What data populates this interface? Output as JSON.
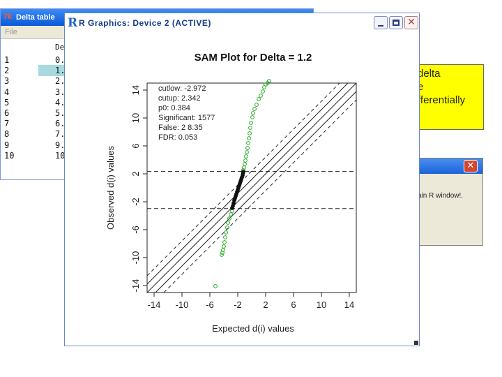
{
  "delta_window": {
    "title": "Delta table",
    "menu_file": "File",
    "column_header": "De",
    "rows": [
      {
        "index": "1",
        "value": "0."
      },
      {
        "index": "2",
        "value": "1."
      },
      {
        "index": "3",
        "value": "2."
      },
      {
        "index": "4",
        "value": "3."
      },
      {
        "index": "5",
        "value": "4."
      },
      {
        "index": "6",
        "value": "5."
      },
      {
        "index": "7",
        "value": "6."
      },
      {
        "index": "8",
        "value": "7."
      },
      {
        "index": "9",
        "value": "9."
      },
      {
        "index": "10",
        "value": "10"
      }
    ],
    "selected_row": 2
  },
  "help_note": {
    "lines": [
      "delta",
      "e",
      "fferentially"
    ]
  },
  "message_dialog": {
    "close_glyph": "✕",
    "text": "ain R window!."
  },
  "r_graphics_window": {
    "logo": "R",
    "title": "R Graphics: Device 2 (ACTIVE)",
    "close_glyph": "✕"
  },
  "chart_data": {
    "type": "scatter",
    "title": "SAM Plot for Delta = 1.2",
    "xlabel": "Expected d(i) values",
    "ylabel": "Observed d(i) values",
    "xlim": [
      -15,
      15
    ],
    "ylim": [
      -15,
      15
    ],
    "x_ticks": [
      -14,
      -10,
      -6,
      -2,
      2,
      6,
      10,
      14
    ],
    "y_ticks": [
      -14,
      -10,
      -6,
      -2,
      2,
      6,
      10,
      14
    ],
    "y_tick_labels": [
      "-14",
      "-10",
      "-6",
      "-2",
      "2",
      "6",
      "10",
      "14"
    ],
    "delta": 1.2,
    "cutoff_lines_y": [
      -2.972,
      2.342
    ],
    "stats": {
      "cutlow": "cutlow: -2.972",
      "cutup": "cutup: 2.342",
      "p0": "p0: 0.384",
      "significant": "Significant: 1577",
      "false": "False: 2 8.35",
      "fdr": "FDR: 0.053"
    },
    "series": [
      {
        "color": "#22aa22",
        "kind": "significant-up",
        "points": [
          [
            -1.2,
            2.5
          ],
          [
            -1.1,
            2.9
          ],
          [
            -1.0,
            3.4
          ],
          [
            -0.9,
            3.9
          ],
          [
            -0.8,
            4.5
          ],
          [
            -0.7,
            5.1
          ],
          [
            -0.6,
            5.7
          ],
          [
            -0.5,
            6.4
          ],
          [
            -0.4,
            7.1
          ],
          [
            -0.3,
            7.8
          ],
          [
            -0.2,
            8.6
          ],
          [
            -0.1,
            9.3
          ],
          [
            0.1,
            10.1
          ],
          [
            0.2,
            10.7
          ],
          [
            0.4,
            11.3
          ],
          [
            0.7,
            11.9
          ],
          [
            1.0,
            12.7
          ],
          [
            1.3,
            13.2
          ],
          [
            1.6,
            13.8
          ],
          [
            1.8,
            14.4
          ],
          [
            2.0,
            14.8
          ],
          [
            2.3,
            15.0
          ],
          [
            2.5,
            15.3
          ]
        ]
      },
      {
        "color": "#22aa22",
        "kind": "significant-down",
        "points": [
          [
            -2.8,
            -3.3
          ],
          [
            -3.0,
            -3.8
          ],
          [
            -3.2,
            -4.4
          ],
          [
            -3.4,
            -5.0
          ],
          [
            -3.5,
            -5.7
          ],
          [
            -3.7,
            -6.4
          ],
          [
            -3.8,
            -7.1
          ],
          [
            -3.9,
            -7.8
          ],
          [
            -4.0,
            -8.4
          ],
          [
            -4.1,
            -8.9
          ],
          [
            -4.2,
            -9.3
          ],
          [
            -4.3,
            -9.6
          ],
          [
            -5.2,
            -14.1
          ]
        ]
      },
      {
        "color": "#111111",
        "kind": "not-significant",
        "points": [
          [
            -2.8,
            -2.9
          ],
          [
            -2.7,
            -2.6
          ],
          [
            -2.6,
            -2.2
          ],
          [
            -2.5,
            -1.8
          ],
          [
            -2.4,
            -1.5
          ],
          [
            -2.3,
            -1.2
          ],
          [
            -2.2,
            -0.9
          ],
          [
            -2.1,
            -0.6
          ],
          [
            -2.0,
            -0.3
          ],
          [
            -1.9,
            0.0
          ],
          [
            -1.8,
            0.3
          ],
          [
            -1.7,
            0.6
          ],
          [
            -1.6,
            0.9
          ],
          [
            -1.5,
            1.2
          ],
          [
            -1.4,
            1.5
          ],
          [
            -1.3,
            1.8
          ],
          [
            -1.25,
            2.1
          ],
          [
            -1.2,
            2.3
          ]
        ]
      }
    ],
    "reference_lines": {
      "identity": true,
      "delta_band": 1.2,
      "outer_dashed_offset": 2.4
    }
  }
}
